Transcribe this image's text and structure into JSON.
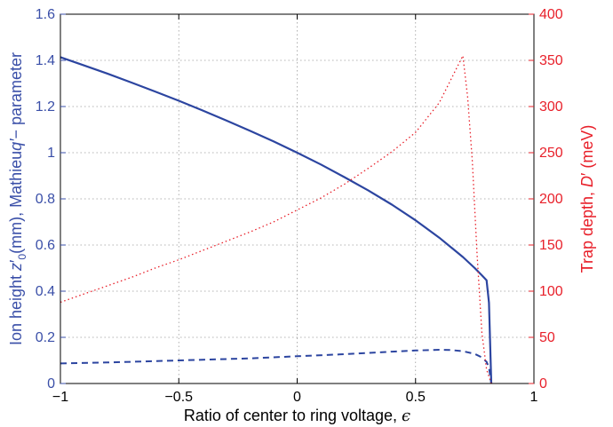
{
  "chart_data": {
    "type": "line",
    "title": "",
    "xlabel": {
      "text": "Ratio of center to ring voltage, ",
      "symbol": "ϵ"
    },
    "ylabel_left": {
      "prefix": "Ion height ",
      "var": "z",
      "prime": "′",
      "sub": "0",
      "mid": "(mm), Mathieu",
      "var2": "q′",
      "suffix": "− parameter"
    },
    "ylabel_right": {
      "prefix": "Trap depth, ",
      "var": "D",
      "prime": "′",
      "suffix": " (meV)"
    },
    "xlim": [
      -1,
      1
    ],
    "ylim_left": [
      0,
      1.6
    ],
    "ylim_right": [
      0,
      400
    ],
    "xticks": [
      -1,
      -0.5,
      0,
      0.5,
      1
    ],
    "xtick_labels": [
      "−1",
      "−0.5",
      "0",
      "0.5",
      "1"
    ],
    "yticks_left": [
      0,
      0.2,
      0.4,
      0.6,
      0.8,
      1,
      1.2,
      1.4,
      1.6
    ],
    "ytick_labels_left": [
      "0",
      "0.2",
      "0.4",
      "0.6",
      "0.8",
      "1",
      "1.2",
      "1.4",
      "1.6"
    ],
    "yticks_right": [
      0,
      50,
      100,
      150,
      200,
      250,
      300,
      350,
      400
    ],
    "ytick_labels_right": [
      "0",
      "50",
      "100",
      "150",
      "200",
      "250",
      "300",
      "350",
      "400"
    ],
    "grid": true,
    "colors": {
      "left_axis": "#3a4fa8",
      "right_axis": "#e8202a",
      "solid": "#2c45a0",
      "dashed": "#2c45a0",
      "dotted": "#e8202a"
    },
    "series": [
      {
        "axis": "left",
        "style": "solid",
        "x": [
          -1,
          -0.9,
          -0.8,
          -0.7,
          -0.6,
          -0.5,
          -0.4,
          -0.3,
          -0.2,
          -0.1,
          0,
          0.1,
          0.2,
          0.3,
          0.4,
          0.5,
          0.6,
          0.7,
          0.75,
          0.78,
          0.8,
          0.81,
          0.82
        ],
        "y": [
          1.414,
          1.378,
          1.342,
          1.304,
          1.265,
          1.225,
          1.183,
          1.14,
          1.095,
          1.049,
          1.0,
          0.949,
          0.894,
          0.837,
          0.775,
          0.707,
          0.632,
          0.548,
          0.5,
          0.469,
          0.447,
          0.35,
          0.0
        ]
      },
      {
        "axis": "left",
        "style": "dashed",
        "x": [
          -1,
          -0.8,
          -0.6,
          -0.4,
          -0.2,
          0,
          0.2,
          0.4,
          0.5,
          0.6,
          0.65,
          0.7,
          0.75,
          0.78,
          0.8,
          0.81,
          0.82
        ],
        "y": [
          0.087,
          0.091,
          0.097,
          0.103,
          0.109,
          0.118,
          0.127,
          0.138,
          0.143,
          0.146,
          0.145,
          0.14,
          0.128,
          0.113,
          0.094,
          0.07,
          0.0
        ]
      },
      {
        "axis": "right",
        "style": "dotted",
        "x": [
          -1,
          -0.9,
          -0.8,
          -0.7,
          -0.6,
          -0.5,
          -0.4,
          -0.3,
          -0.2,
          -0.1,
          0,
          0.1,
          0.2,
          0.3,
          0.4,
          0.5,
          0.6,
          0.7,
          0.72,
          0.74,
          0.76,
          0.78,
          0.8,
          0.82
        ],
        "y": [
          88,
          97,
          106,
          115,
          125,
          134,
          144,
          154,
          164,
          175,
          188,
          201,
          216,
          233,
          251,
          272,
          304,
          355,
          310,
          240,
          140,
          55,
          15,
          0
        ]
      }
    ]
  }
}
